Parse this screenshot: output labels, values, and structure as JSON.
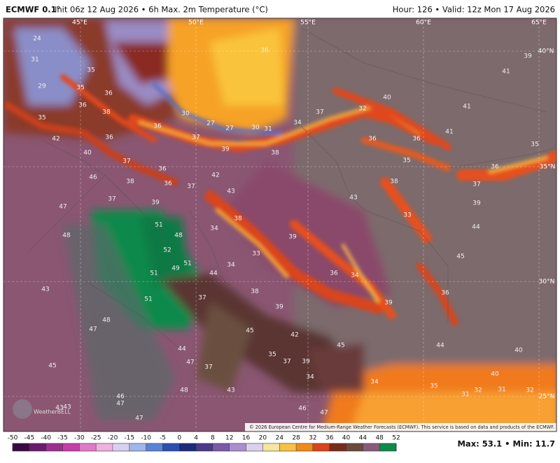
{
  "header": {
    "model": "ECMWF 0.1°",
    "run": "Init 06z 12 Aug 2026 • 6h Max. 2m Temperature (°C)",
    "valid": "Hour: 126 • Valid: 12z Mon 17 Aug 2026"
  },
  "grid_labels": [
    "45°E",
    "50°E",
    "55°E",
    "60°E",
    "65°E",
    "40°N",
    "35°N",
    "30°N",
    "25°N"
  ],
  "temperature_labels": [
    24,
    31,
    35,
    29,
    35,
    36,
    36,
    38,
    35,
    36,
    36,
    42,
    40,
    37,
    36,
    46,
    38,
    36,
    37,
    37,
    39,
    47,
    42,
    43,
    38,
    51,
    48,
    48,
    52,
    51,
    49,
    51,
    44,
    34,
    33,
    34,
    38,
    39,
    51,
    43,
    37,
    48,
    47,
    45,
    42,
    44,
    35,
    37,
    39,
    47,
    37,
    45,
    34,
    43,
    48,
    46,
    47,
    43,
    43,
    46,
    47,
    47,
    36,
    40,
    41,
    37,
    32,
    34,
    30,
    31,
    27,
    27,
    30,
    37,
    39,
    38,
    36,
    35,
    41,
    36,
    38,
    43,
    33,
    39,
    36,
    34,
    39,
    36,
    45,
    44,
    39,
    37,
    36,
    35,
    39,
    41,
    44,
    40,
    40,
    35,
    32,
    31,
    32,
    34,
    31,
    45
  ],
  "logo": "WeatherBELL",
  "credit": "© 2026 European Centre for Medium-Range Weather Forecasts (ECMWF). This service is based on data and products of the ECMWF.",
  "colorbar": {
    "ticks": [
      -50,
      -45,
      -40,
      -35,
      -30,
      -25,
      -20,
      -15,
      -10,
      -5,
      0,
      4,
      8,
      12,
      16,
      20,
      24,
      28,
      32,
      36,
      40,
      44,
      48,
      52
    ],
    "colors": [
      "#3b0a45",
      "#6a1b6e",
      "#9c2f8f",
      "#c43fa8",
      "#e07ac8",
      "#f0b0e0",
      "#d8d0f0",
      "#9fb6ea",
      "#5b82d6",
      "#2d4fb0",
      "#1a2c7a",
      "#4b3a8a",
      "#7a5aa8",
      "#a98fcf",
      "#dcd0ec",
      "#f5e6a0",
      "#f7c244",
      "#f08a1a",
      "#d9441a",
      "#7a2a1a",
      "#6b4a3a",
      "#8a5a7a",
      "#0d8a4a"
    ]
  },
  "stats": "Max: 53.1 • Min: 11.7"
}
